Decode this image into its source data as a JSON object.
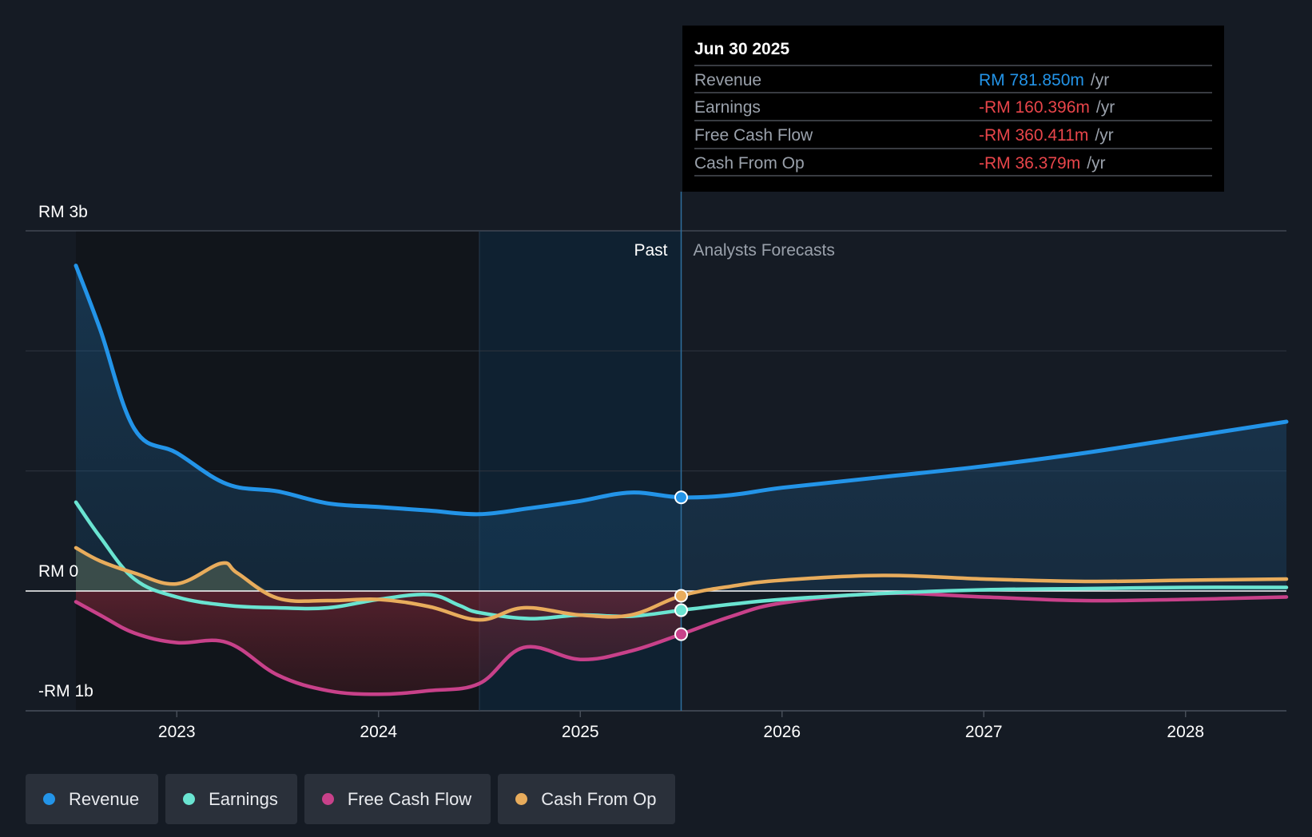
{
  "chart_data": {
    "type": "line",
    "title": "",
    "currency": "RM",
    "x_ticks": [
      "2023",
      "2024",
      "2025",
      "2026",
      "2027",
      "2028"
    ],
    "y_tick_labels": {
      "top": "RM 3b",
      "zero": "RM 0",
      "bottom": "-RM 1b"
    },
    "ylim_billions": [
      -1.0,
      3.0
    ],
    "xlim_years": [
      2022.5,
      2028.5
    ],
    "past_label": "Past",
    "forecast_label": "Analysts Forecasts",
    "past_end_year": 2025.5,
    "highlight_start_year": 2024.5,
    "series": [
      {
        "name": "Revenue",
        "color": "#2394e8",
        "points": [
          [
            2022.5,
            2.71
          ],
          [
            2022.62,
            2.18
          ],
          [
            2022.79,
            1.35
          ],
          [
            2023.0,
            1.15
          ],
          [
            2023.25,
            0.89
          ],
          [
            2023.5,
            0.83
          ],
          [
            2023.75,
            0.73
          ],
          [
            2024.0,
            0.7
          ],
          [
            2024.25,
            0.67
          ],
          [
            2024.5,
            0.64
          ],
          [
            2024.75,
            0.69
          ],
          [
            2025.0,
            0.75
          ],
          [
            2025.25,
            0.82
          ],
          [
            2025.5,
            0.78
          ],
          [
            2025.75,
            0.8
          ],
          [
            2026.0,
            0.86
          ],
          [
            2026.5,
            0.95
          ],
          [
            2027.0,
            1.04
          ],
          [
            2027.5,
            1.15
          ],
          [
            2028.0,
            1.28
          ],
          [
            2028.5,
            1.41
          ]
        ]
      },
      {
        "name": "Earnings",
        "color": "#6ae4d1",
        "points": [
          [
            2022.5,
            0.74
          ],
          [
            2022.62,
            0.45
          ],
          [
            2022.79,
            0.1
          ],
          [
            2023.0,
            -0.05
          ],
          [
            2023.25,
            -0.12
          ],
          [
            2023.5,
            -0.14
          ],
          [
            2023.75,
            -0.14
          ],
          [
            2024.0,
            -0.07
          ],
          [
            2024.25,
            -0.03
          ],
          [
            2024.4,
            -0.12
          ],
          [
            2024.5,
            -0.18
          ],
          [
            2024.75,
            -0.23
          ],
          [
            2025.0,
            -0.2
          ],
          [
            2025.25,
            -0.21
          ],
          [
            2025.5,
            -0.16
          ],
          [
            2025.75,
            -0.11
          ],
          [
            2026.0,
            -0.07
          ],
          [
            2026.5,
            -0.02
          ],
          [
            2027.0,
            0.01
          ],
          [
            2027.5,
            0.02
          ],
          [
            2028.0,
            0.03
          ],
          [
            2028.5,
            0.03
          ]
        ]
      },
      {
        "name": "Free Cash Flow",
        "color": "#c8418a",
        "points": [
          [
            2022.5,
            -0.09
          ],
          [
            2022.62,
            -0.2
          ],
          [
            2022.79,
            -0.35
          ],
          [
            2023.0,
            -0.43
          ],
          [
            2023.25,
            -0.43
          ],
          [
            2023.5,
            -0.7
          ],
          [
            2023.75,
            -0.83
          ],
          [
            2024.0,
            -0.86
          ],
          [
            2024.25,
            -0.83
          ],
          [
            2024.5,
            -0.77
          ],
          [
            2024.72,
            -0.47
          ],
          [
            2025.0,
            -0.57
          ],
          [
            2025.25,
            -0.5
          ],
          [
            2025.5,
            -0.36
          ],
          [
            2025.75,
            -0.21
          ],
          [
            2026.0,
            -0.1
          ],
          [
            2026.5,
            -0.02
          ],
          [
            2027.0,
            -0.05
          ],
          [
            2027.5,
            -0.08
          ],
          [
            2028.0,
            -0.07
          ],
          [
            2028.5,
            -0.05
          ]
        ]
      },
      {
        "name": "Cash From Op",
        "color": "#e8ac5c",
        "points": [
          [
            2022.5,
            0.36
          ],
          [
            2022.62,
            0.25
          ],
          [
            2022.79,
            0.15
          ],
          [
            2023.0,
            0.06
          ],
          [
            2023.22,
            0.23
          ],
          [
            2023.3,
            0.15
          ],
          [
            2023.5,
            -0.06
          ],
          [
            2023.75,
            -0.08
          ],
          [
            2024.0,
            -0.07
          ],
          [
            2024.25,
            -0.13
          ],
          [
            2024.5,
            -0.24
          ],
          [
            2024.72,
            -0.14
          ],
          [
            2025.0,
            -0.2
          ],
          [
            2025.25,
            -0.2
          ],
          [
            2025.5,
            -0.04
          ],
          [
            2025.75,
            0.04
          ],
          [
            2026.0,
            0.09
          ],
          [
            2026.5,
            0.13
          ],
          [
            2027.0,
            0.1
          ],
          [
            2027.5,
            0.08
          ],
          [
            2028.0,
            0.09
          ],
          [
            2028.5,
            0.1
          ]
        ]
      }
    ],
    "tooltip": {
      "date": "Jun 30 2025",
      "rows": [
        {
          "label": "Revenue",
          "value": "RM 781.850m",
          "unit": "/yr",
          "color": "#2394e8"
        },
        {
          "label": "Earnings",
          "value": "-RM 160.396m",
          "unit": "/yr",
          "color": "#e8454a"
        },
        {
          "label": "Free Cash Flow",
          "value": "-RM 360.411m",
          "unit": "/yr",
          "color": "#e8454a"
        },
        {
          "label": "Cash From Op",
          "value": "-RM 36.379m",
          "unit": "/yr",
          "color": "#e8454a"
        }
      ]
    }
  },
  "legend": {
    "items": [
      {
        "label": "Revenue",
        "color": "#2394e8"
      },
      {
        "label": "Earnings",
        "color": "#6ae4d1"
      },
      {
        "label": "Free Cash Flow",
        "color": "#c8418a"
      },
      {
        "label": "Cash From Op",
        "color": "#e8ac5c"
      }
    ]
  }
}
